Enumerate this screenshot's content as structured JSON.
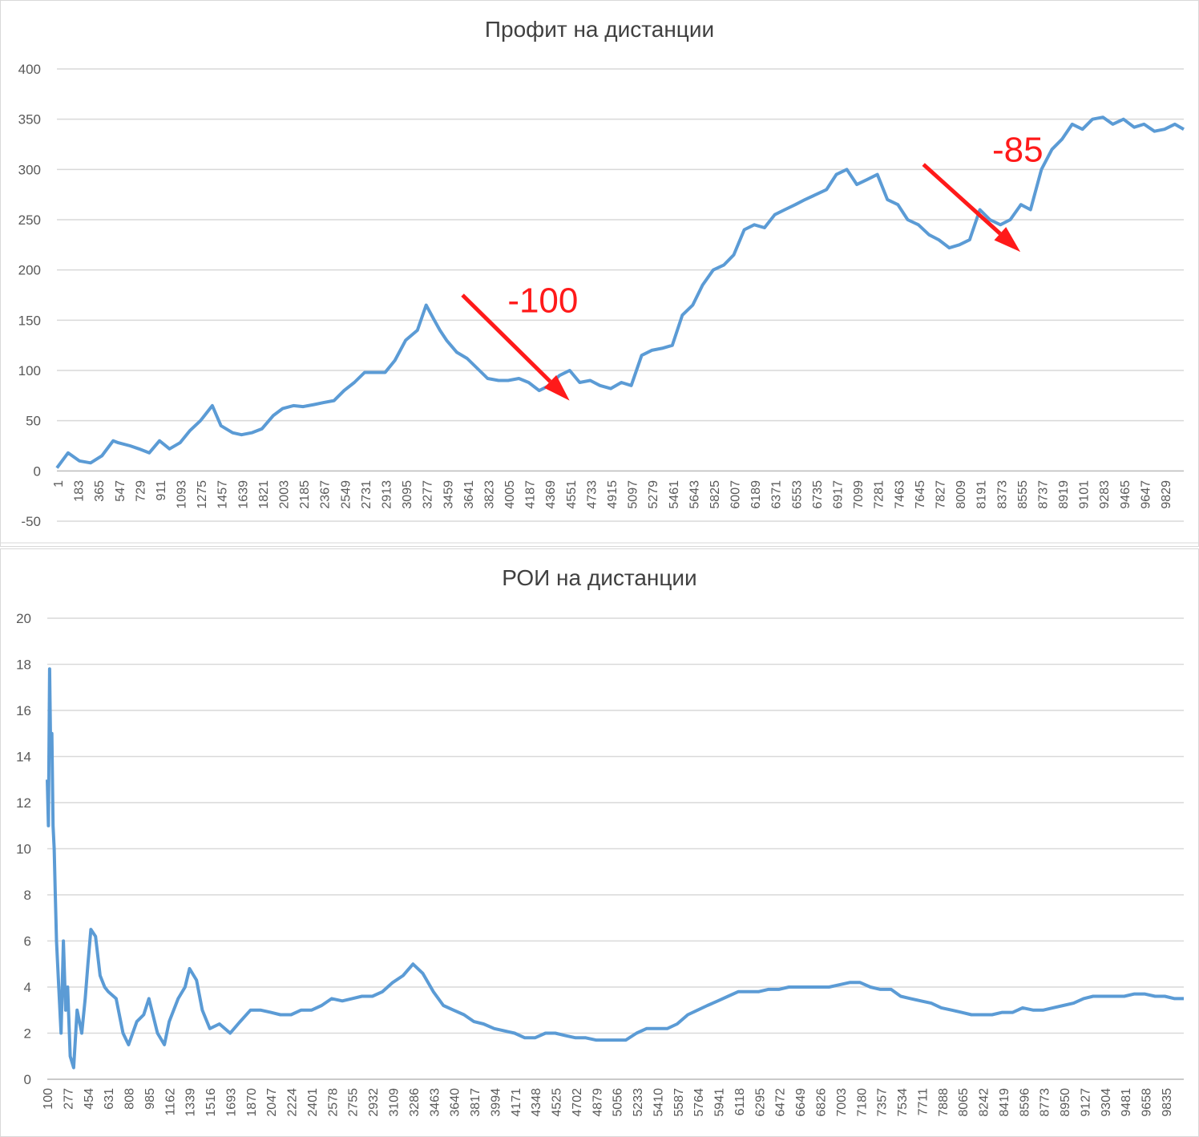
{
  "colors": {
    "series": "#5b9bd5",
    "grid": "#d9d9d9",
    "annotation": "#ff1a1a",
    "text": "#595959"
  },
  "chart_data": [
    {
      "type": "line",
      "title": "Профит на дистанции",
      "ylim": [
        -50,
        400
      ],
      "yticks": [
        "400",
        "350",
        "300",
        "250",
        "200",
        "150",
        "100",
        "50",
        "0",
        "-50"
      ],
      "xtick_labels": [
        "1",
        "183",
        "365",
        "547",
        "729",
        "911",
        "1093",
        "1275",
        "1457",
        "1639",
        "1821",
        "2003",
        "2185",
        "2367",
        "2549",
        "2731",
        "2913",
        "3095",
        "3277",
        "3459",
        "3641",
        "3823",
        "4005",
        "4187",
        "4369",
        "4551",
        "4733",
        "4915",
        "5097",
        "5279",
        "5461",
        "5643",
        "5825",
        "6007",
        "6189",
        "6371",
        "6553",
        "6735",
        "6917",
        "7099",
        "7281",
        "7463",
        "7645",
        "7827",
        "8009",
        "8191",
        "8373",
        "8555",
        "8737",
        "8919",
        "9101",
        "9283",
        "9465",
        "9647",
        "9829"
      ],
      "xlim": [
        1,
        10000
      ],
      "grid": true,
      "legend": "none",
      "series": [
        {
          "x": [
            1,
            100,
            200,
            300,
            400,
            500,
            547,
            650,
            729,
            820,
            911,
            1000,
            1093,
            1180,
            1275,
            1380,
            1457,
            1560,
            1639,
            1730,
            1821,
            1920,
            2003,
            2100,
            2185,
            2280,
            2367,
            2460,
            2549,
            2640,
            2731,
            2820,
            2913,
            3000,
            3095,
            3200,
            3277,
            3350,
            3400,
            3459,
            3550,
            3641,
            3750,
            3823,
            3920,
            4005,
            4100,
            4187,
            4280,
            4369,
            4460,
            4551,
            4640,
            4733,
            4820,
            4915,
            5010,
            5097,
            5190,
            5279,
            5370,
            5461,
            5550,
            5643,
            5730,
            5825,
            5920,
            6007,
            6100,
            6189,
            6280,
            6371,
            6460,
            6553,
            6640,
            6735,
            6830,
            6917,
            7010,
            7099,
            7190,
            7281,
            7370,
            7463,
            7550,
            7645,
            7740,
            7827,
            7920,
            8009,
            8100,
            8191,
            8280,
            8373,
            8460,
            8555,
            8640,
            8737,
            8830,
            8919,
            9010,
            9101,
            9190,
            9283,
            9370,
            9465,
            9560,
            9647,
            9740,
            9829,
            9920,
            10000
          ],
          "y": [
            3,
            18,
            10,
            8,
            15,
            30,
            28,
            25,
            22,
            18,
            30,
            22,
            28,
            40,
            50,
            65,
            45,
            38,
            36,
            38,
            42,
            55,
            62,
            65,
            64,
            66,
            68,
            70,
            80,
            88,
            98,
            98,
            98,
            110,
            130,
            140,
            165,
            150,
            140,
            130,
            118,
            112,
            100,
            92,
            90,
            90,
            92,
            88,
            80,
            85,
            95,
            100,
            88,
            90,
            85,
            82,
            88,
            85,
            115,
            120,
            122,
            125,
            155,
            165,
            185,
            200,
            205,
            215,
            240,
            245,
            242,
            255,
            260,
            265,
            270,
            275,
            280,
            295,
            300,
            285,
            290,
            295,
            270,
            265,
            250,
            245,
            235,
            230,
            222,
            225,
            230,
            260,
            250,
            245,
            250,
            265,
            260,
            300,
            320,
            330,
            345,
            340,
            350,
            352,
            345,
            350,
            342,
            345,
            338,
            340,
            345,
            340
          ]
        }
      ],
      "annotations": [
        {
          "text": "-100",
          "x1": 3600,
          "y1": 175,
          "x2": 4550,
          "y2": 70,
          "tx": 4000,
          "ty": 158
        },
        {
          "text": "-85",
          "x1": 7690,
          "y1": 305,
          "x2": 8550,
          "y2": 218,
          "tx": 8300,
          "ty": 308
        }
      ]
    },
    {
      "type": "line",
      "title": "РОИ на дистанции",
      "ylim": [
        0,
        20
      ],
      "yticks": [
        "20",
        "18",
        "16",
        "14",
        "12",
        "10",
        "8",
        "6",
        "4",
        "2",
        "0"
      ],
      "xtick_labels": [
        "100",
        "277",
        "454",
        "631",
        "808",
        "985",
        "1162",
        "1339",
        "1516",
        "1693",
        "1870",
        "2047",
        "2224",
        "2401",
        "2578",
        "2755",
        "2932",
        "3109",
        "3286",
        "3463",
        "3640",
        "3817",
        "3994",
        "4171",
        "4348",
        "4525",
        "4702",
        "4879",
        "5056",
        "5233",
        "5410",
        "5587",
        "5764",
        "5941",
        "6118",
        "6295",
        "6472",
        "6649",
        "6826",
        "7003",
        "7180",
        "7357",
        "7534",
        "7711",
        "7888",
        "8065",
        "8242",
        "8419",
        "8596",
        "8773",
        "8950",
        "9127",
        "9304",
        "9481",
        "9658",
        "9835"
      ],
      "xlim": [
        100,
        10000
      ],
      "grid": true,
      "legend": "none",
      "series": [
        {
          "x": [
            100,
            110,
            120,
            130,
            140,
            150,
            160,
            170,
            180,
            190,
            200,
            220,
            240,
            260,
            277,
            300,
            330,
            360,
            400,
            430,
            454,
            480,
            520,
            560,
            600,
            631,
            700,
            760,
            808,
            880,
            940,
            985,
            1060,
            1120,
            1162,
            1240,
            1300,
            1339,
            1400,
            1450,
            1516,
            1600,
            1693,
            1780,
            1870,
            1960,
            2047,
            2130,
            2224,
            2310,
            2401,
            2490,
            2578,
            2670,
            2755,
            2840,
            2932,
            3020,
            3109,
            3200,
            3286,
            3370,
            3463,
            3550,
            3640,
            3730,
            3817,
            3900,
            3994,
            4080,
            4171,
            4260,
            4348,
            4440,
            4525,
            4610,
            4702,
            4790,
            4879,
            4970,
            5056,
            5140,
            5233,
            5320,
            5410,
            5500,
            5587,
            5680,
            5764,
            5850,
            5941,
            6030,
            6118,
            6200,
            6295,
            6380,
            6472,
            6560,
            6649,
            6740,
            6826,
            6910,
            7003,
            7090,
            7180,
            7270,
            7357,
            7450,
            7534,
            7620,
            7711,
            7800,
            7888,
            7980,
            8065,
            8150,
            8242,
            8330,
            8419,
            8510,
            8596,
            8690,
            8773,
            8860,
            8950,
            9040,
            9127,
            9210,
            9304,
            9390,
            9481,
            9570,
            9658,
            9750,
            9835,
            9920,
            10000
          ],
          "y": [
            13,
            11,
            17.8,
            14,
            15,
            11,
            10,
            8,
            6,
            5,
            4,
            2,
            6,
            3,
            4,
            1,
            0.5,
            3,
            2,
            3.5,
            5,
            6.5,
            6.2,
            4.5,
            4,
            3.8,
            3.5,
            2,
            1.5,
            2.5,
            2.8,
            3.5,
            2,
            1.5,
            2.5,
            3.5,
            4,
            4.8,
            4.3,
            3,
            2.2,
            2.4,
            2,
            2.5,
            3,
            3,
            2.9,
            2.8,
            2.8,
            3,
            3,
            3.2,
            3.5,
            3.4,
            3.5,
            3.6,
            3.6,
            3.8,
            4.2,
            4.5,
            5,
            4.6,
            3.8,
            3.2,
            3,
            2.8,
            2.5,
            2.4,
            2.2,
            2.1,
            2,
            1.8,
            1.8,
            2,
            2,
            1.9,
            1.8,
            1.8,
            1.7,
            1.7,
            1.7,
            1.7,
            2,
            2.2,
            2.2,
            2.2,
            2.4,
            2.8,
            3,
            3.2,
            3.4,
            3.6,
            3.8,
            3.8,
            3.8,
            3.9,
            3.9,
            4,
            4,
            4,
            4,
            4,
            4.1,
            4.2,
            4.2,
            4,
            3.9,
            3.9,
            3.6,
            3.5,
            3.4,
            3.3,
            3.1,
            3,
            2.9,
            2.8,
            2.8,
            2.8,
            2.9,
            2.9,
            3.1,
            3,
            3,
            3.1,
            3.2,
            3.3,
            3.5,
            3.6,
            3.6,
            3.6,
            3.6,
            3.7,
            3.7,
            3.6,
            3.6,
            3.5,
            3.5
          ]
        }
      ]
    }
  ]
}
